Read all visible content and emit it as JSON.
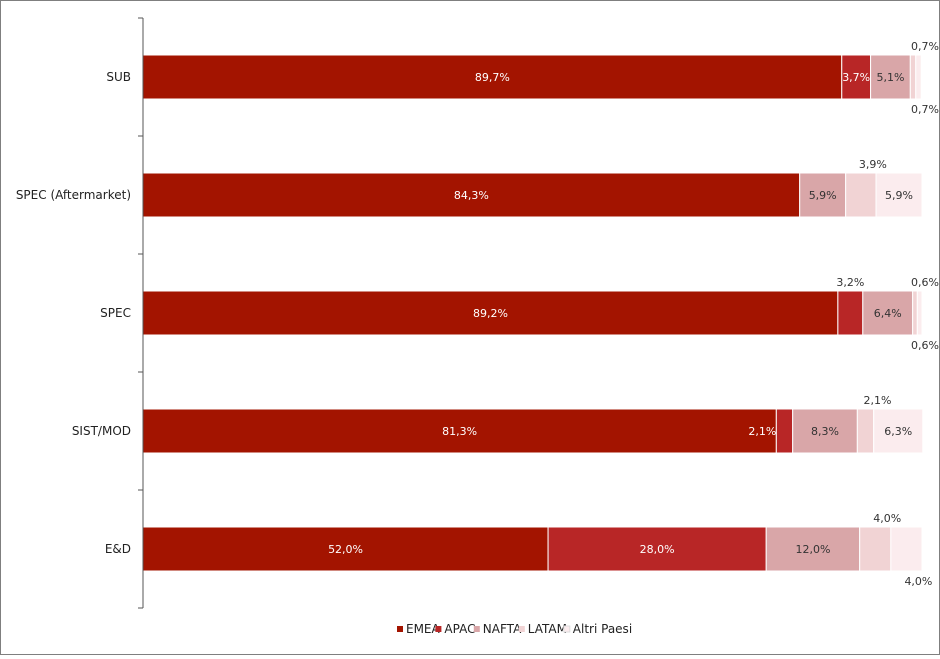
{
  "chart_data": {
    "type": "bar",
    "orientation": "horizontal",
    "stacked": true,
    "percent_stacked": true,
    "categories": [
      "SUB",
      "SPEC (Aftermarket)",
      "SPEC",
      "SIST/MOD",
      "E&D"
    ],
    "series": [
      {
        "name": "EMEA",
        "color": "#a31400",
        "values": [
          89.7,
          84.3,
          89.2,
          81.3,
          52.0
        ],
        "labels": [
          "89,7%",
          "84,3%",
          "89,2%",
          "81,3%",
          "52,0%"
        ]
      },
      {
        "name": "APAC",
        "color": "#b82626",
        "values": [
          3.7,
          0,
          3.2,
          2.1,
          28.0
        ],
        "labels": [
          "3,7%",
          "",
          "3,2%",
          "2,1%",
          "28,0%"
        ]
      },
      {
        "name": "NAFTA",
        "color": "#d9a6a8",
        "values": [
          5.1,
          5.9,
          6.4,
          8.3,
          12.0
        ],
        "labels": [
          "5,1%",
          "5,9%",
          "6,4%",
          "8,3%",
          "12,0%"
        ]
      },
      {
        "name": "LATAM",
        "color": "#f1d3d4",
        "values": [
          0.7,
          3.9,
          0.6,
          2.1,
          4.0
        ],
        "labels": [
          "0,7%",
          "3,9%",
          "0,6%",
          "2,1%",
          "4,0%"
        ]
      },
      {
        "name": "Altri Paesi",
        "color": "#fbecee",
        "values": [
          0.7,
          5.9,
          0.6,
          6.3,
          4.0
        ],
        "labels": [
          "0,7%",
          "5,9%",
          "0,6%",
          "6,3%",
          "4,0%"
        ]
      }
    ],
    "xlim": [
      0,
      100
    ],
    "grid": false,
    "legend": "bottom"
  }
}
